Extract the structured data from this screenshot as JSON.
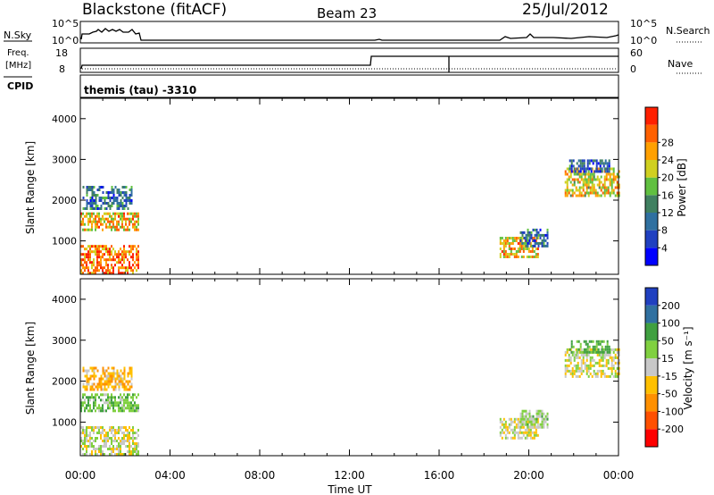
{
  "header": {
    "site_title": "Blackstone (fitACF)",
    "beam_label": "Beam 23",
    "date_label": "25/Jul/2012"
  },
  "strip_panels": {
    "nsky": {
      "left_label": "N.Sky",
      "right_label": "N.Search",
      "tick_top": "10^5",
      "tick_bottom": "10^0",
      "right_tick_top": "10^5",
      "right_tick_bottom": "10^0"
    },
    "freq": {
      "left_label_line1": "Freq.",
      "left_label_line2": "[MHz]",
      "right_label": "Nave",
      "tick_top": "18",
      "tick_bottom": "8",
      "right_tick_top": "60",
      "right_tick_bottom": "0"
    },
    "cpid": {
      "left_label": "CPID",
      "value_text": "themis (tau) -3310"
    }
  },
  "time_axis": {
    "label": "Time UT",
    "ticks": [
      "00:00",
      "04:00",
      "08:00",
      "12:00",
      "16:00",
      "20:00",
      "00:00"
    ]
  },
  "colors": {
    "power_scale": [
      "#0000ff",
      "#2040c0",
      "#3070a0",
      "#408060",
      "#60c040",
      "#d0d020",
      "#ffa000",
      "#ff6000",
      "#ff2000"
    ],
    "velocity_scale": [
      "#ff0000",
      "#ff5000",
      "#ff9000",
      "#ffc000",
      "#c8c8c8",
      "#80d040",
      "#40a040",
      "#3070a0",
      "#2040c0"
    ]
  },
  "chart_data": [
    {
      "type": "heatmap",
      "name": "power",
      "ylabel": "Slant Range [km]",
      "xlabel": "",
      "xlim_hours": [
        0,
        24
      ],
      "ylim_km": [
        180,
        4500
      ],
      "y_ticks": [
        "1000",
        "2000",
        "3000",
        "4000"
      ],
      "y_tick_values": [
        1000,
        2000,
        3000,
        4000
      ],
      "colorbar": {
        "label": "Power [dB]",
        "ticks": [
          "4",
          "8",
          "12",
          "16",
          "20",
          "24",
          "28"
        ],
        "tick_values": [
          4,
          8,
          12,
          16,
          20,
          24,
          28
        ],
        "range": [
          0,
          32
        ]
      },
      "echo_regions": [
        {
          "t0": 0.0,
          "t1": 2.6,
          "r0": 180,
          "r1": 900,
          "value": 26
        },
        {
          "t0": 0.0,
          "t1": 2.6,
          "r0": 1250,
          "r1": 1700,
          "value": 22
        },
        {
          "t0": 0.1,
          "t1": 2.3,
          "r0": 1800,
          "r1": 2350,
          "value": 10
        },
        {
          "t0": 18.7,
          "t1": 20.4,
          "r0": 600,
          "r1": 1100,
          "value": 22
        },
        {
          "t0": 19.6,
          "t1": 20.8,
          "r0": 900,
          "r1": 1300,
          "value": 10
        },
        {
          "t0": 21.6,
          "t1": 24.0,
          "r0": 2100,
          "r1": 2800,
          "value": 20
        },
        {
          "t0": 21.8,
          "t1": 23.6,
          "r0": 2700,
          "r1": 3000,
          "value": 8
        }
      ]
    },
    {
      "type": "heatmap",
      "name": "velocity",
      "ylabel": "Slant Range [km]",
      "xlabel": "Time UT",
      "xlim_hours": [
        0,
        24
      ],
      "ylim_km": [
        180,
        4500
      ],
      "y_ticks": [
        "1000",
        "2000",
        "3000",
        "4000"
      ],
      "y_tick_values": [
        1000,
        2000,
        3000,
        4000
      ],
      "colorbar": {
        "label": "Velocity [m s⁻¹]",
        "ticks": [
          "-200",
          "-100",
          "-50",
          "-15",
          "15",
          "50",
          "100",
          "200"
        ],
        "tick_values": [
          -200,
          -100,
          -50,
          -15,
          15,
          50,
          100,
          200
        ]
      },
      "echo_regions": [
        {
          "t0": 0.0,
          "t1": 2.6,
          "r0": 180,
          "r1": 900,
          "value": 0
        },
        {
          "t0": 0.0,
          "t1": 2.6,
          "r0": 1250,
          "r1": 1700,
          "value": 40
        },
        {
          "t0": 0.1,
          "t1": 2.3,
          "r0": 1800,
          "r1": 2350,
          "value": -40
        },
        {
          "t0": 18.7,
          "t1": 20.4,
          "r0": 600,
          "r1": 1100,
          "value": 0
        },
        {
          "t0": 19.6,
          "t1": 20.8,
          "r0": 900,
          "r1": 1300,
          "value": 20
        },
        {
          "t0": 21.6,
          "t1": 24.0,
          "r0": 2100,
          "r1": 2800,
          "value": 0
        },
        {
          "t0": 21.8,
          "t1": 23.6,
          "r0": 2700,
          "r1": 3000,
          "value": 60
        }
      ]
    }
  ]
}
